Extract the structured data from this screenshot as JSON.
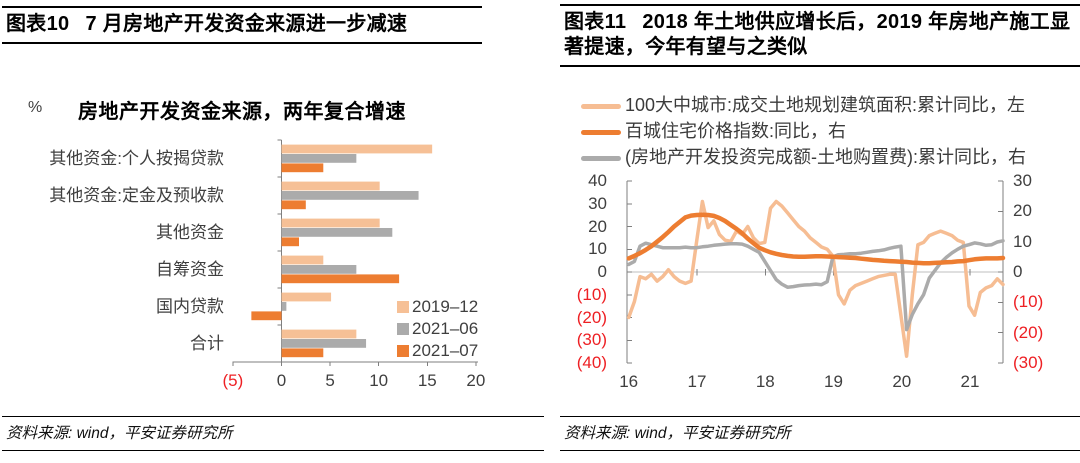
{
  "fig10": {
    "label": "图表10",
    "caption": "7 月房地产开发资金来源进一步减速",
    "source": "资料来源: wind，平安证券研究所"
  },
  "fig11": {
    "label": "图表11",
    "caption": "2018 年土地供应增长后，2019 年房地产施工显著提速，今年有望与之类似",
    "source": "资料来源: wind，平安证券研究所"
  },
  "colors": {
    "light_orange": "#f6c096",
    "orange": "#ed7d31",
    "gray": "#ababab",
    "negative_red": "#ee2024",
    "axis_gray": "#7f7f7f",
    "grid_gray": "#bfbfbf",
    "text_dark": "#3f3f3f"
  },
  "chart_data": [
    {
      "type": "bar",
      "orientation": "horizontal",
      "title": "房地产开发资金来源，两年复合增速",
      "unit_label": "%",
      "categories": [
        "其他资金:个人按揭贷款",
        "其他资金:定金及预收款",
        "其他资金",
        "自筹资金",
        "国内贷款",
        "合计"
      ],
      "series": [
        {
          "name": "2019–12",
          "color": "#f6c096",
          "values": [
            15.5,
            10.1,
            10.1,
            4.3,
            5.1,
            7.7
          ]
        },
        {
          "name": "2021–06",
          "color": "#ababab",
          "values": [
            7.7,
            14.1,
            11.4,
            7.7,
            0.5,
            8.7
          ]
        },
        {
          "name": "2021–07",
          "color": "#ed7d31",
          "values": [
            4.3,
            2.5,
            1.8,
            12.1,
            -3.1,
            4.3
          ]
        }
      ],
      "xlim": [
        -5,
        20
      ],
      "xtick_values": [
        -5,
        0,
        5,
        10,
        15,
        20
      ],
      "xticks": [
        "(5)",
        "0",
        "5",
        "10",
        "15",
        "20"
      ],
      "legend_position": "inside-bottom-right",
      "grid": false
    },
    {
      "type": "line",
      "x_frequency": "monthly",
      "x_start": "2016-01",
      "x_end": "2021-07",
      "x_tick_labels": [
        "16",
        "17",
        "18",
        "19",
        "20",
        "21"
      ],
      "left_axis": {
        "min": -40,
        "max": 40,
        "step": 10,
        "tick_labels": [
          "40",
          "30",
          "20",
          "10",
          "0",
          "(10)",
          "(20)",
          "(30)",
          "(40)"
        ]
      },
      "right_axis": {
        "min": -30,
        "max": 30,
        "step": 10,
        "tick_labels": [
          "30",
          "20",
          "10",
          "0",
          "(10)",
          "(20)",
          "(30)"
        ]
      },
      "grid": "zero-line-only",
      "legend_position": "top-left",
      "series": [
        {
          "name": "100大中城市:成交土地规划建筑面积:累计同比，左",
          "axis": "left",
          "color": "#f6bd93",
          "width": 3.5,
          "values": [
            -20,
            -13,
            -2,
            -3,
            -1,
            -4,
            -2,
            1,
            -2,
            -4,
            -5,
            -4,
            14,
            31,
            19.5,
            22.5,
            16.5,
            14,
            13.5,
            18,
            16.5,
            20,
            15,
            12.5,
            13,
            28,
            31,
            29,
            26,
            23,
            20,
            18,
            15,
            13,
            11,
            10,
            7,
            -10,
            -14,
            -8,
            -6,
            -5,
            -4,
            -3,
            -2,
            -1.5,
            -1,
            -1,
            -19,
            -37,
            -10,
            12,
            13,
            16,
            17,
            18,
            17,
            16,
            14,
            13,
            -15,
            -19,
            -9,
            -7,
            -6,
            -3,
            -5.5
          ]
        },
        {
          "name": "百城住宅价格指数:同比，右",
          "axis": "right",
          "color": "#ed7d31",
          "width": 4.5,
          "values": [
            4.5,
            5.3,
            6.2,
            7.3,
            8.5,
            10,
            11.5,
            13.2,
            15,
            16.5,
            18,
            18.6,
            18.8,
            18.9,
            18.8,
            18.5,
            17.8,
            16.8,
            15.5,
            14.2,
            12.8,
            11,
            9.5,
            8,
            7.2,
            6.5,
            6,
            5.6,
            5.3,
            5.1,
            5,
            5,
            5.1,
            5.2,
            5.2,
            5.1,
            5,
            4.9,
            4.8,
            4.7,
            4.6,
            4.4,
            4.2,
            4,
            3.9,
            3.7,
            3.6,
            3.5,
            3.4,
            3.3,
            3.1,
            3,
            2.9,
            2.9,
            3,
            3.1,
            3.2,
            3.3,
            3.5,
            3.6,
            3.9,
            4.2,
            4.4,
            4.5,
            4.5,
            4.5,
            4.6
          ]
        },
        {
          "name": "(房地产开发投资完成额-土地购置费):累计同比，右",
          "axis": "right",
          "color": "#ababab",
          "width": 3.5,
          "values": [
            2.5,
            3.5,
            8.5,
            9.5,
            9,
            8.5,
            8,
            8,
            8,
            8,
            8.2,
            8,
            8,
            8.3,
            8.5,
            8.8,
            9,
            9.2,
            9.3,
            9.3,
            9.2,
            8.5,
            7.5,
            6.5,
            3.5,
            0.5,
            -2.5,
            -4,
            -5,
            -4.8,
            -4.5,
            -4.3,
            -4.2,
            -4,
            -4.2,
            -3.2,
            5,
            5.7,
            5.8,
            6,
            6,
            6.2,
            6.5,
            6.8,
            7,
            7.3,
            7.8,
            8.2,
            8.5,
            -19,
            -14,
            -10.5,
            -7.5,
            -2,
            0.5,
            3,
            4.8,
            6.3,
            7.5,
            8.5,
            9,
            9.6,
            9.3,
            8.8,
            9,
            9.9,
            10.3
          ]
        }
      ]
    }
  ]
}
